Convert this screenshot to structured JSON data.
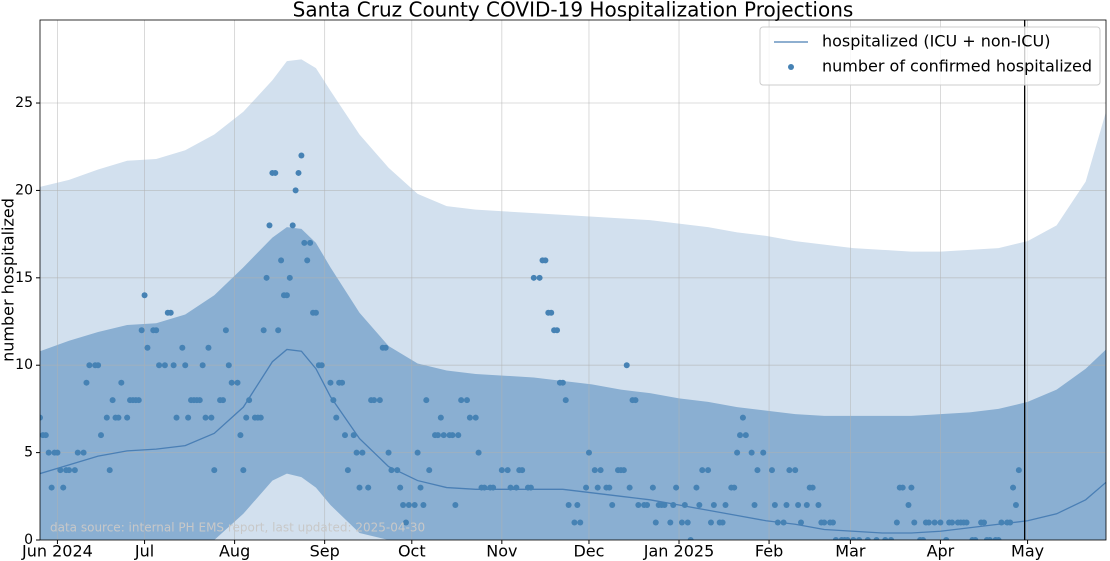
{
  "chart_data": {
    "type": "line",
    "title": "Santa Cruz County COVID-19 Hospitalization Projections",
    "ylabel": "number hospitalized",
    "annotation": "data source: internal PH EMS report, last updated: 2025-04-30",
    "xlim": [
      -6,
      361
    ],
    "ylim": [
      0,
      29.75
    ],
    "yticks": [
      0,
      5,
      10,
      15,
      20,
      25
    ],
    "xticks": [
      {
        "value": 0,
        "label": "Jun 2024"
      },
      {
        "value": 30,
        "label": "Jul"
      },
      {
        "value": 61,
        "label": "Aug"
      },
      {
        "value": 92,
        "label": "Sep"
      },
      {
        "value": 122,
        "label": "Oct"
      },
      {
        "value": 153,
        "label": "Nov"
      },
      {
        "value": 183,
        "label": "Dec"
      },
      {
        "value": 214,
        "label": "Jan 2025"
      },
      {
        "value": 245,
        "label": "Feb"
      },
      {
        "value": 273,
        "label": "Mar"
      },
      {
        "value": 304,
        "label": "Apr"
      },
      {
        "value": 334,
        "label": "May"
      }
    ],
    "grid": true,
    "legend": "upper right",
    "vline": 333,
    "x": [
      -6,
      4,
      14,
      24,
      34,
      44,
      54,
      64,
      74,
      79,
      84,
      89,
      94,
      104,
      114,
      124,
      134,
      144,
      154,
      164,
      174,
      184,
      194,
      204,
      214,
      224,
      234,
      244,
      254,
      264,
      274,
      284,
      294,
      304,
      314,
      324,
      334,
      344,
      354,
      361
    ],
    "bands": [
      {
        "color": "#d2e0ee",
        "lower": [
          0,
          0,
          0,
          0,
          0,
          0,
          0,
          0,
          0,
          0,
          0,
          0,
          0,
          0,
          0,
          0,
          0,
          0,
          0,
          0,
          0,
          0,
          0,
          0,
          0,
          0,
          0,
          0,
          0,
          0,
          0,
          0,
          0,
          0,
          0,
          0,
          0,
          0,
          0,
          0
        ],
        "upper": [
          20.2,
          20.6,
          21.2,
          21.7,
          21.8,
          22.3,
          23.2,
          24.5,
          26.3,
          27.4,
          27.5,
          27,
          25.7,
          23.2,
          21.3,
          19.8,
          19.1,
          18.9,
          18.8,
          18.7,
          18.6,
          18.5,
          18.4,
          18.3,
          18.1,
          17.9,
          17.6,
          17.4,
          17.1,
          16.9,
          16.7,
          16.6,
          16.5,
          16.5,
          16.6,
          16.7,
          17.1,
          18,
          20.5,
          24.5
        ]
      },
      {
        "color": "#8aafd2",
        "lower": [
          0,
          0,
          0,
          0,
          0,
          0,
          0,
          1.5,
          3.4,
          3.8,
          3.6,
          3,
          2,
          0.4,
          0,
          0,
          0,
          0,
          0,
          0,
          0,
          0,
          0,
          0,
          0,
          0,
          0,
          0,
          0,
          0,
          0,
          0,
          0,
          0,
          0,
          0,
          0,
          0,
          0,
          0
        ],
        "upper": [
          10.8,
          11.4,
          11.9,
          12.3,
          12.4,
          12.9,
          14,
          15.6,
          17.3,
          17.9,
          17.8,
          17,
          15.6,
          13,
          11.1,
          10.1,
          9.7,
          9.5,
          9.4,
          9.3,
          9.1,
          8.9,
          8.6,
          8.4,
          8.1,
          7.9,
          7.6,
          7.4,
          7.2,
          7.1,
          7.1,
          7.1,
          7.1,
          7.2,
          7.3,
          7.5,
          7.9,
          8.6,
          9.8,
          10.9
        ]
      }
    ],
    "series": [
      {
        "name": "hospitalized (ICU + non-ICU)",
        "type": "line",
        "color": "#4a7fb5",
        "values": [
          3.8,
          4.3,
          4.8,
          5.1,
          5.2,
          5.4,
          6.1,
          7.6,
          10.2,
          10.9,
          10.8,
          9.8,
          8.2,
          5.8,
          4.2,
          3.4,
          3,
          2.9,
          2.9,
          2.9,
          2.9,
          2.7,
          2.5,
          2.3,
          2,
          1.7,
          1.4,
          1.1,
          0.9,
          0.6,
          0.5,
          0.4,
          0.4,
          0.5,
          0.7,
          0.9,
          1.1,
          1.5,
          2.3,
          3.3
        ]
      },
      {
        "name": "number of confirmed hospitalized",
        "type": "scatter",
        "color": "#4682b4",
        "x": [
          -6,
          -5,
          -4,
          -3,
          -2,
          -1,
          0,
          1,
          2,
          3,
          4,
          6,
          7,
          9,
          10,
          11,
          13,
          14,
          15,
          17,
          18,
          19,
          20,
          21,
          22,
          24,
          25,
          26,
          27,
          28,
          29,
          30,
          31,
          33,
          34,
          35,
          37,
          38,
          39,
          40,
          41,
          43,
          44,
          45,
          46,
          47,
          48,
          49,
          50,
          51,
          52,
          53,
          54,
          56,
          57,
          58,
          59,
          60,
          62,
          63,
          64,
          65,
          66,
          68,
          69,
          70,
          71,
          72,
          73,
          74,
          75,
          76,
          77,
          78,
          79,
          80,
          81,
          82,
          83,
          84,
          85,
          86,
          87,
          88,
          89,
          90,
          91,
          94,
          95,
          96,
          97,
          98,
          99,
          100,
          102,
          103,
          104,
          105,
          107,
          108,
          109,
          111,
          112,
          113,
          114,
          115,
          117,
          118,
          119,
          120,
          121,
          123,
          124,
          125,
          126,
          127,
          128,
          130,
          131,
          132,
          133,
          135,
          136,
          137,
          138,
          139,
          141,
          142,
          144,
          145,
          146,
          147,
          149,
          150,
          153,
          155,
          156,
          158,
          159,
          160,
          162,
          163,
          164,
          166,
          167,
          168,
          169,
          170,
          171,
          172,
          173,
          174,
          175,
          176,
          178,
          179,
          180,
          182,
          183,
          185,
          186,
          187,
          189,
          190,
          191,
          193,
          194,
          195,
          196,
          197,
          198,
          199,
          200,
          202,
          203,
          205,
          206,
          207,
          208,
          209,
          211,
          212,
          213,
          215,
          216,
          217,
          218,
          220,
          221,
          222,
          224,
          225,
          226,
          228,
          229,
          230,
          232,
          233,
          234,
          235,
          236,
          237,
          239,
          240,
          241,
          243,
          246,
          247,
          248,
          250,
          251,
          252,
          254,
          255,
          256,
          258,
          259,
          260,
          262,
          263,
          264,
          266,
          267,
          268,
          270,
          271,
          272,
          274,
          276,
          279,
          282,
          285,
          287,
          289,
          290,
          291,
          293,
          294,
          295,
          297,
          298,
          299,
          300,
          302,
          304,
          306,
          307,
          308,
          310,
          311,
          312,
          313,
          315,
          316,
          318,
          319,
          320,
          321,
          323,
          324,
          325,
          327,
          328,
          329,
          330,
          331
        ],
        "values": [
          7,
          6,
          6,
          5,
          3,
          5,
          5,
          4,
          3,
          4,
          4,
          4,
          5,
          5,
          9,
          10,
          10,
          10,
          6,
          7,
          4,
          8,
          7,
          7,
          9,
          7,
          8,
          8,
          8,
          8,
          12,
          14,
          11,
          12,
          12,
          10,
          10,
          13,
          13,
          10,
          7,
          11,
          10,
          7,
          8,
          8,
          8,
          8,
          10,
          7,
          11,
          7,
          4,
          8,
          8,
          12,
          10,
          9,
          9,
          6,
          4,
          7,
          8,
          7,
          7,
          7,
          12,
          15,
          18,
          21,
          21,
          12,
          16,
          14,
          14,
          15,
          18,
          20,
          21,
          22,
          17,
          16,
          17,
          13,
          13,
          10,
          10,
          9,
          8,
          7,
          9,
          9,
          6,
          4,
          6,
          5,
          3,
          5,
          3,
          8,
          8,
          8,
          11,
          11,
          5,
          4,
          4,
          3,
          2,
          1,
          2,
          2,
          5,
          3,
          2,
          8,
          4,
          6,
          6,
          7,
          6,
          6,
          6,
          2,
          6,
          8,
          8,
          7,
          7,
          5,
          3,
          3,
          3,
          3,
          4,
          4,
          3,
          3,
          4,
          4,
          3,
          3,
          15,
          15,
          16,
          16,
          13,
          13,
          12,
          12,
          9,
          9,
          8,
          2,
          1,
          2,
          1,
          3,
          5,
          4,
          3,
          4,
          3,
          3,
          2,
          4,
          4,
          4,
          10,
          3,
          8,
          8,
          2,
          2,
          2,
          3,
          1,
          2,
          2,
          2,
          1,
          2,
          3,
          1,
          2,
          1,
          0,
          3,
          2,
          4,
          4,
          1,
          2,
          1,
          1,
          2,
          3,
          3,
          5,
          6,
          7,
          6,
          5,
          2,
          4,
          5,
          4,
          2,
          1,
          1,
          2,
          4,
          4,
          2,
          1,
          2,
          3,
          3,
          2,
          1,
          1,
          1,
          1,
          0,
          0,
          0,
          0,
          0,
          0,
          0,
          0,
          0,
          0,
          1,
          3,
          3,
          2,
          3,
          1,
          0,
          0,
          1,
          1,
          1,
          1,
          0,
          1,
          1,
          1,
          1,
          1,
          1,
          0,
          0,
          1,
          1,
          0,
          0,
          0,
          0,
          1,
          1,
          1,
          3,
          2,
          4
        ]
      }
    ]
  }
}
